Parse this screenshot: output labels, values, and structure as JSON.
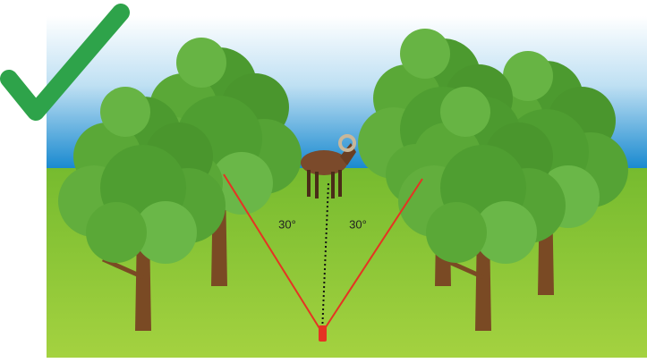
{
  "scene": {
    "angle_labels": [
      "30°",
      "30°"
    ]
  }
}
